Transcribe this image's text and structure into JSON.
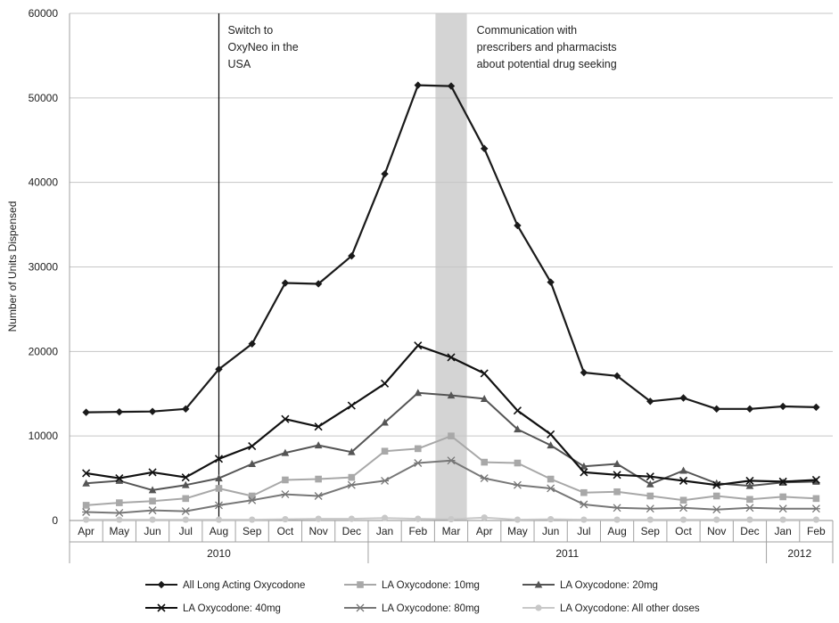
{
  "chart_data": {
    "type": "line",
    "title": "",
    "ylabel": "Number of Units Dispensed",
    "xlabel": "",
    "ylim": [
      0,
      60000
    ],
    "yticks": [
      0,
      10000,
      20000,
      30000,
      40000,
      50000,
      60000
    ],
    "grid": "horizontal",
    "legend_position": "bottom",
    "categories": [
      "Apr",
      "May",
      "Jun",
      "Jul",
      "Aug",
      "Sep",
      "Oct",
      "Nov",
      "Dec",
      "Jan",
      "Feb",
      "Mar",
      "Apr",
      "May",
      "Jun",
      "Jul",
      "Aug",
      "Sep",
      "Oct",
      "Nov",
      "Dec",
      "Jan",
      "Feb"
    ],
    "years": [
      {
        "label": "2010",
        "start": 0,
        "end": 8
      },
      {
        "label": "2011",
        "start": 9,
        "end": 20
      },
      {
        "label": "2012",
        "start": 21,
        "end": 22
      }
    ],
    "series": [
      {
        "name": "All Long Acting Oxycodone",
        "color": "#1a1a1a",
        "marker": "diamond",
        "values": [
          12800,
          12850,
          12900,
          13200,
          17900,
          20900,
          28100,
          28000,
          31300,
          41000,
          51500,
          51400,
          44000,
          34900,
          28200,
          17500,
          17100,
          14100,
          14500,
          13200,
          13200,
          13500,
          13400
        ]
      },
      {
        "name": "LA Oxycodone: 10mg",
        "color": "#a8a8a8",
        "marker": "square",
        "values": [
          1800,
          2100,
          2300,
          2600,
          3800,
          2900,
          4800,
          4900,
          5100,
          8200,
          8500,
          10000,
          6900,
          6800,
          4900,
          3300,
          3400,
          2900,
          2400,
          2900,
          2500,
          2800,
          2600
        ]
      },
      {
        "name": "LA Oxycodone: 20mg",
        "color": "#555555",
        "marker": "triangle",
        "values": [
          4400,
          4700,
          3600,
          4200,
          5000,
          6700,
          8000,
          8900,
          8100,
          11600,
          15100,
          14800,
          14400,
          10800,
          8900,
          6400,
          6700,
          4300,
          5900,
          4400,
          4100,
          4500,
          4600
        ]
      },
      {
        "name": "LA Oxycodone: 40mg",
        "color": "#111111",
        "marker": "x",
        "values": [
          5600,
          5000,
          5700,
          5100,
          7300,
          8800,
          12000,
          11100,
          13600,
          16200,
          20700,
          19300,
          17400,
          13000,
          10200,
          5700,
          5400,
          5200,
          4700,
          4200,
          4700,
          4600,
          4800
        ]
      },
      {
        "name": "LA Oxycodone: 80mg",
        "color": "#777777",
        "marker": "star",
        "values": [
          1000,
          900,
          1200,
          1100,
          1800,
          2400,
          3100,
          2900,
          4200,
          4700,
          6800,
          7100,
          5000,
          4200,
          3800,
          1900,
          1500,
          1400,
          1500,
          1300,
          1500,
          1400,
          1400
        ]
      },
      {
        "name": "LA Oxycodone: All other doses",
        "color": "#c8c8c8",
        "marker": "circle",
        "values": [
          100,
          100,
          100,
          100,
          100,
          100,
          150,
          200,
          200,
          300,
          200,
          150,
          350,
          100,
          150,
          100,
          100,
          100,
          100,
          100,
          100,
          100,
          100
        ]
      }
    ],
    "annotations": [
      {
        "type": "vline",
        "at_index": 4,
        "lines": [
          "Switch to",
          "OxyNeo in the",
          "USA"
        ]
      },
      {
        "type": "band",
        "at_index": 11,
        "lines": [
          "Communication with",
          "prescribers and pharmacists",
          "about potential drug seeking"
        ]
      }
    ]
  }
}
